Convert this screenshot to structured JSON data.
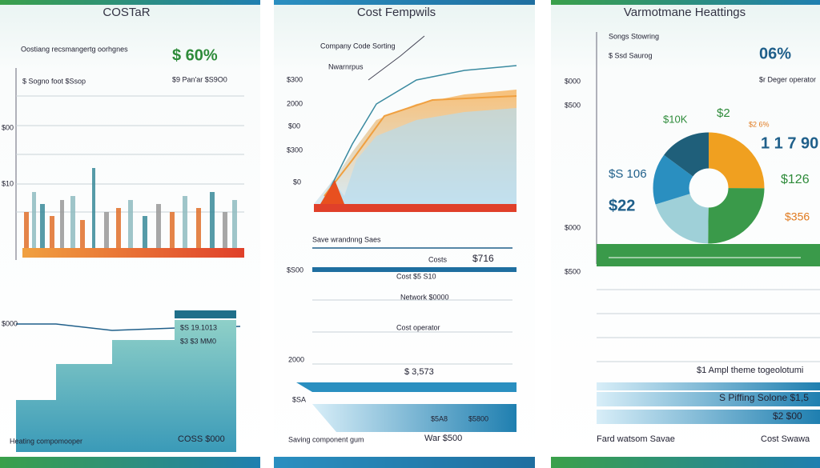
{
  "panels": [
    {
      "title": "COSTaR",
      "texts": [
        "$ 60%",
        "$9 Pan'ar $S9O0",
        "$ Sogno foot $Ssop",
        "$S 19.1013",
        "$3 $3 MM0",
        "COSS $000",
        "Heating compomooper",
        "Oostiang recsmangertg oorhgnes",
        "$10",
        "$000",
        "$00"
      ]
    },
    {
      "title": "Cost Fempwils",
      "texts": [
        "Company Code Sorting",
        "Nwarnrpus",
        "$300",
        "2000",
        "$00",
        "$300",
        "$0",
        "Save wrandnng Saes",
        "Costs",
        "$716",
        "Cost $5 S10",
        "Network $0000",
        "Cost operator",
        "$ 3,573",
        "$SA",
        "$5A8",
        "$5800",
        "Saving component gum",
        "War $500",
        "$S00",
        "2000"
      ]
    },
    {
      "title": "Varmotmane Heattings",
      "texts": [
        "Songs Stowring",
        "$ Ssd Saurog",
        "06%",
        "$r Deger operator",
        "$000",
        "$500",
        "$10K",
        "$2",
        "$2 6%",
        "1 1 7 90",
        "$S 106",
        "$22",
        "$126",
        "$356",
        "$1 Ampl theme togeolotumi",
        "S Piffing Solone $1,5",
        "$2 $00",
        "Fard watsom Savae",
        "Cost Swawa",
        "$000",
        "$500"
      ]
    }
  ]
}
